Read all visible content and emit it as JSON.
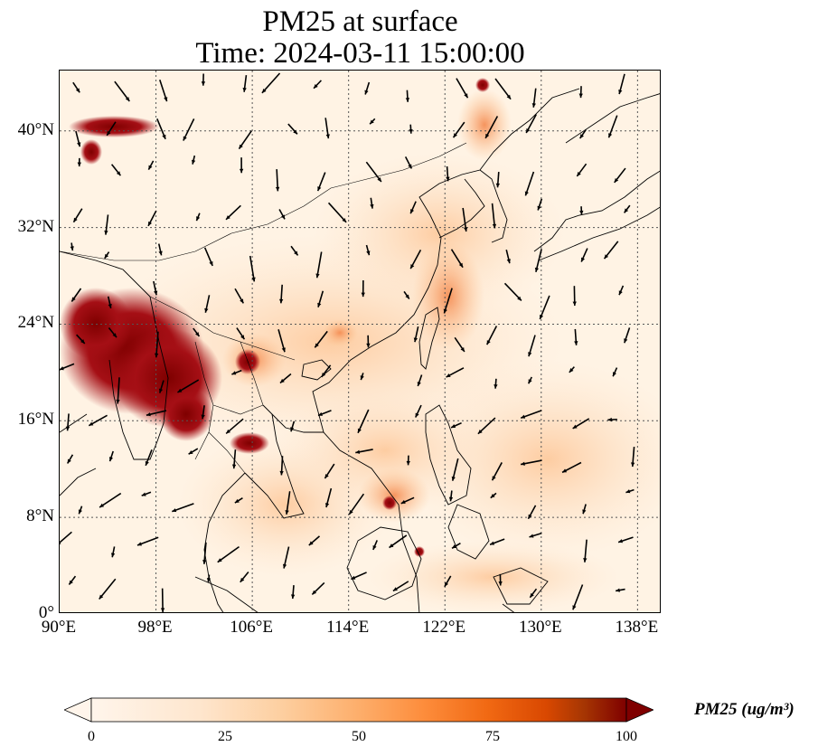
{
  "title": {
    "line1": "PM25 at surface",
    "line2": "Time: 2024-03-11 15:00:00"
  },
  "map": {
    "lon_ticks": [
      "90°E",
      "98°E",
      "106°E",
      "114°E",
      "122°E",
      "130°E",
      "138°E"
    ],
    "lat_ticks": [
      "40°N",
      "32°N",
      "24°N",
      "16°N",
      "8°N",
      "0°"
    ],
    "lon_range": [
      90,
      140
    ],
    "lat_range": [
      0,
      45
    ],
    "gridlines": true,
    "colors": {
      "low": "#fff5eb",
      "mid": "#fdb97d",
      "high": "#e8522a",
      "max": "#7f0000"
    }
  },
  "colorbar": {
    "label": "PM25 (ug/m³)",
    "ticks": [
      "0",
      "25",
      "50",
      "75",
      "100"
    ],
    "range": [
      0,
      100
    ],
    "extend": "both"
  }
}
